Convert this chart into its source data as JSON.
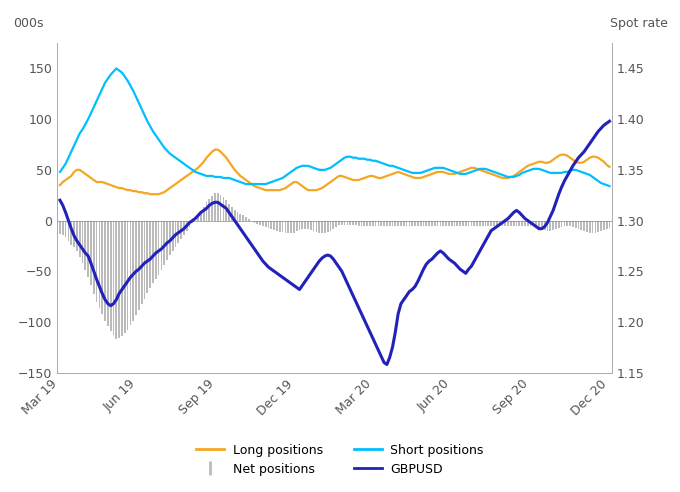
{
  "left_ylim": [
    -150,
    175
  ],
  "right_ylim": [
    1.15,
    1.475
  ],
  "left_yticks": [
    -150,
    -100,
    -50,
    0,
    50,
    100,
    150
  ],
  "right_yticks": [
    1.15,
    1.2,
    1.25,
    1.3,
    1.35,
    1.4,
    1.45
  ],
  "left_ylabel": "000s",
  "right_ylabel": "Spot rate",
  "colors": {
    "long": "#F5A623",
    "short": "#00BFFF",
    "net": "#BBBBBB",
    "gbpusd": "#2222BB"
  },
  "tick_labels": [
    "Mar 19",
    "Jun 19",
    "Sep 19",
    "Dec 19",
    "Mar 20",
    "Jun 20",
    "Sep 20",
    "Dec 20"
  ],
  "long_positions": [
    35,
    38,
    40,
    42,
    44,
    48,
    50,
    50,
    48,
    46,
    44,
    42,
    40,
    38,
    38,
    38,
    37,
    36,
    35,
    34,
    33,
    32,
    32,
    31,
    30,
    30,
    29,
    29,
    28,
    28,
    27,
    27,
    26,
    26,
    26,
    26,
    27,
    28,
    30,
    32,
    34,
    36,
    38,
    40,
    42,
    44,
    46,
    48,
    50,
    52,
    55,
    58,
    62,
    65,
    68,
    70,
    70,
    68,
    65,
    62,
    58,
    54,
    50,
    47,
    44,
    42,
    40,
    38,
    36,
    34,
    33,
    32,
    31,
    30,
    30,
    30,
    30,
    30,
    30,
    31,
    32,
    34,
    36,
    38,
    38,
    36,
    34,
    32,
    30,
    30,
    30,
    30,
    31,
    32,
    34,
    36,
    38,
    40,
    42,
    44,
    44,
    43,
    42,
    41,
    40,
    40,
    40,
    41,
    42,
    43,
    44,
    44,
    43,
    42,
    42,
    43,
    44,
    45,
    46,
    47,
    48,
    47,
    46,
    45,
    44,
    43,
    42,
    42,
    42,
    43,
    44,
    45,
    46,
    47,
    48,
    48,
    48,
    47,
    46,
    46,
    46,
    47,
    48,
    49,
    50,
    51,
    52,
    52,
    51,
    50,
    49,
    48,
    47,
    46,
    45,
    44,
    43,
    42,
    42,
    42,
    43,
    44,
    46,
    48,
    50,
    52,
    54,
    55,
    56,
    57,
    58,
    58,
    57,
    57,
    58,
    60,
    62,
    64,
    65,
    65,
    64,
    62,
    60,
    58,
    57,
    57,
    58,
    60,
    62,
    63,
    63,
    62,
    60,
    58,
    55,
    53
  ],
  "short_positions": [
    48,
    52,
    56,
    62,
    68,
    74,
    80,
    86,
    90,
    95,
    100,
    106,
    112,
    118,
    124,
    130,
    136,
    140,
    144,
    147,
    150,
    148,
    146,
    142,
    138,
    133,
    128,
    122,
    116,
    110,
    104,
    98,
    93,
    88,
    84,
    80,
    76,
    72,
    69,
    66,
    64,
    62,
    60,
    58,
    56,
    54,
    52,
    50,
    48,
    47,
    46,
    45,
    44,
    44,
    44,
    43,
    43,
    43,
    42,
    42,
    42,
    41,
    40,
    39,
    38,
    37,
    36,
    36,
    36,
    36,
    36,
    36,
    36,
    36,
    37,
    38,
    39,
    40,
    41,
    42,
    44,
    46,
    48,
    50,
    52,
    53,
    54,
    54,
    54,
    53,
    52,
    51,
    50,
    50,
    50,
    51,
    52,
    54,
    56,
    58,
    60,
    62,
    63,
    63,
    62,
    62,
    61,
    61,
    61,
    60,
    60,
    59,
    59,
    58,
    57,
    56,
    55,
    54,
    54,
    53,
    52,
    51,
    50,
    49,
    48,
    47,
    47,
    47,
    47,
    48,
    49,
    50,
    51,
    52,
    52,
    52,
    52,
    51,
    50,
    49,
    48,
    47,
    46,
    46,
    46,
    47,
    48,
    49,
    50,
    51,
    51,
    51,
    50,
    49,
    48,
    47,
    46,
    45,
    44,
    43,
    43,
    43,
    44,
    45,
    47,
    48,
    49,
    50,
    51,
    51,
    51,
    50,
    49,
    48,
    47,
    47,
    47,
    47,
    47,
    48,
    48,
    49,
    50,
    50,
    49,
    48,
    47,
    46,
    45,
    43,
    41,
    39,
    37,
    36,
    35,
    34
  ],
  "net_positions": [
    -13,
    -14,
    -16,
    -20,
    -24,
    -26,
    -30,
    -36,
    -42,
    -49,
    -56,
    -64,
    -72,
    -80,
    -86,
    -92,
    -99,
    -104,
    -109,
    -113,
    -117,
    -116,
    -114,
    -111,
    -108,
    -103,
    -99,
    -93,
    -88,
    -82,
    -77,
    -71,
    -67,
    -62,
    -58,
    -54,
    -49,
    -44,
    -39,
    -34,
    -30,
    -26,
    -22,
    -18,
    -14,
    -10,
    -6,
    -2,
    0,
    5,
    9,
    13,
    18,
    21,
    24,
    27,
    27,
    25,
    23,
    20,
    16,
    13,
    10,
    8,
    6,
    5,
    4,
    2,
    0,
    -2,
    -3,
    -4,
    -5,
    -6,
    -7,
    -8,
    -9,
    -10,
    -11,
    -11,
    -12,
    -12,
    -12,
    -12,
    -10,
    -9,
    -8,
    -8,
    -8,
    -9,
    -10,
    -11,
    -12,
    -12,
    -12,
    -11,
    -10,
    -8,
    -6,
    -4,
    -4,
    -4,
    -4,
    -4,
    -4,
    -4,
    -5,
    -5,
    -5,
    -5,
    -5,
    -5,
    -5,
    -5,
    -5,
    -5,
    -5,
    -5,
    -5,
    -5,
    -5,
    -5,
    -5,
    -5,
    -5,
    -5,
    -5,
    -5,
    -5,
    -5,
    -5,
    -5,
    -5,
    -5,
    -5,
    -5,
    -5,
    -5,
    -5,
    -5,
    -5,
    -5,
    -5,
    -5,
    -5,
    -5,
    -5,
    -5,
    -5,
    -5,
    -5,
    -5,
    -5,
    -5,
    -5,
    -5,
    -5,
    -5,
    -5,
    -5,
    -5,
    -5,
    -5,
    -5,
    -5,
    -5,
    -5,
    -5,
    -5,
    -6,
    -7,
    -8,
    -9,
    -10,
    -10,
    -9,
    -8,
    -7,
    -6,
    -5,
    -5,
    -5,
    -6,
    -7,
    -8,
    -9,
    -10,
    -11,
    -12,
    -12,
    -12,
    -11,
    -10,
    -9,
    -8,
    -7
  ],
  "gbpusd": [
    1.32,
    1.315,
    1.308,
    1.3,
    1.292,
    1.285,
    1.28,
    1.276,
    1.272,
    1.268,
    1.265,
    1.258,
    1.25,
    1.242,
    1.235,
    1.228,
    1.222,
    1.218,
    1.216,
    1.218,
    1.222,
    1.228,
    1.232,
    1.236,
    1.24,
    1.244,
    1.247,
    1.25,
    1.252,
    1.255,
    1.258,
    1.26,
    1.262,
    1.265,
    1.268,
    1.27,
    1.272,
    1.275,
    1.278,
    1.28,
    1.283,
    1.286,
    1.288,
    1.29,
    1.292,
    1.295,
    1.298,
    1.3,
    1.302,
    1.305,
    1.308,
    1.31,
    1.312,
    1.315,
    1.317,
    1.318,
    1.318,
    1.316,
    1.314,
    1.312,
    1.308,
    1.304,
    1.3,
    1.296,
    1.292,
    1.288,
    1.284,
    1.28,
    1.276,
    1.272,
    1.268,
    1.264,
    1.26,
    1.257,
    1.254,
    1.252,
    1.25,
    1.248,
    1.246,
    1.244,
    1.242,
    1.24,
    1.238,
    1.236,
    1.234,
    1.232,
    1.236,
    1.24,
    1.244,
    1.248,
    1.252,
    1.256,
    1.26,
    1.263,
    1.265,
    1.266,
    1.265,
    1.262,
    1.258,
    1.254,
    1.25,
    1.244,
    1.238,
    1.232,
    1.226,
    1.22,
    1.214,
    1.208,
    1.202,
    1.196,
    1.19,
    1.184,
    1.178,
    1.172,
    1.166,
    1.16,
    1.158,
    1.165,
    1.175,
    1.19,
    1.208,
    1.218,
    1.222,
    1.226,
    1.23,
    1.232,
    1.235,
    1.24,
    1.246,
    1.252,
    1.257,
    1.26,
    1.262,
    1.265,
    1.268,
    1.27,
    1.268,
    1.265,
    1.262,
    1.26,
    1.258,
    1.255,
    1.252,
    1.25,
    1.248,
    1.252,
    1.255,
    1.26,
    1.265,
    1.27,
    1.275,
    1.28,
    1.285,
    1.29,
    1.292,
    1.294,
    1.296,
    1.298,
    1.3,
    1.302,
    1.305,
    1.308,
    1.31,
    1.308,
    1.305,
    1.302,
    1.3,
    1.298,
    1.296,
    1.294,
    1.292,
    1.292,
    1.294,
    1.298,
    1.304,
    1.31,
    1.318,
    1.326,
    1.333,
    1.339,
    1.344,
    1.349,
    1.354,
    1.358,
    1.362,
    1.365,
    1.368,
    1.372,
    1.376,
    1.38,
    1.384,
    1.388,
    1.391,
    1.394,
    1.396,
    1.398,
    1.399,
    1.4,
    1.399,
    1.397
  ]
}
